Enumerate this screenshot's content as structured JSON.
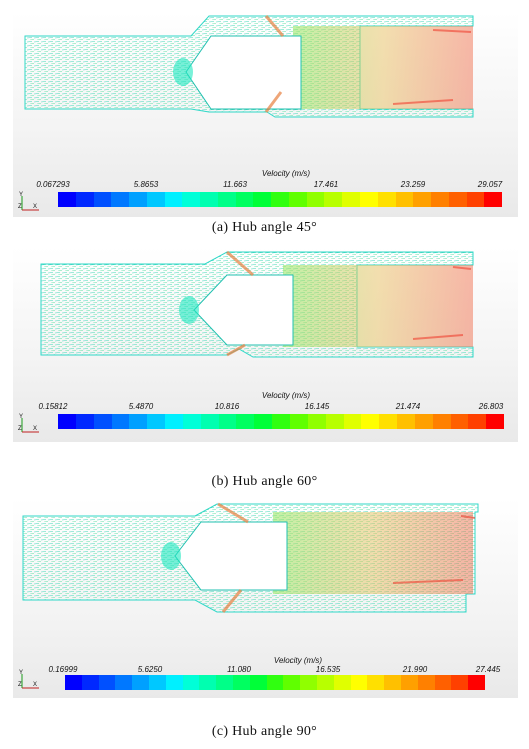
{
  "panels": [
    {
      "legend_title": "Velocity (m/s)",
      "ticks": [
        "0.067293",
        "5.8653",
        "11.663",
        "17.461",
        "23.259",
        "29.057"
      ],
      "caption": "(a) Hub angle 45°",
      "axis": {
        "y": "Y",
        "z": "Z",
        "x": "X"
      }
    },
    {
      "legend_title": "Velocity (m/s)",
      "ticks": [
        "0.15812",
        "5.4870",
        "10.816",
        "16.145",
        "21.474",
        "26.803"
      ],
      "caption": "(b) Hub angle 60°",
      "axis": {
        "y": "Y",
        "z": "Z",
        "x": "X"
      }
    },
    {
      "legend_title": "Velocity (m/s)",
      "ticks": [
        "0.16999",
        "5.6250",
        "11.080",
        "16.535",
        "21.990",
        "27.445"
      ],
      "caption": "(c) Hub angle 90°",
      "axis": {
        "y": "Y",
        "z": "Z",
        "x": "X"
      }
    }
  ],
  "colors": {
    "colormap": [
      "#0000ff",
      "#0028ff",
      "#0050ff",
      "#0078ff",
      "#00a0ff",
      "#00c8ff",
      "#00f0ff",
      "#00ffd8",
      "#00ffb0",
      "#00ff88",
      "#00ff60",
      "#00ff38",
      "#30ff10",
      "#60ff00",
      "#90ff00",
      "#b8ff00",
      "#e0ff00",
      "#ffff00",
      "#ffe000",
      "#ffc000",
      "#ffa000",
      "#ff8000",
      "#ff6000",
      "#ff4000",
      "#ff0000"
    ],
    "wall": "#30d8c8",
    "inlet_vectors": "#40e0b0"
  }
}
